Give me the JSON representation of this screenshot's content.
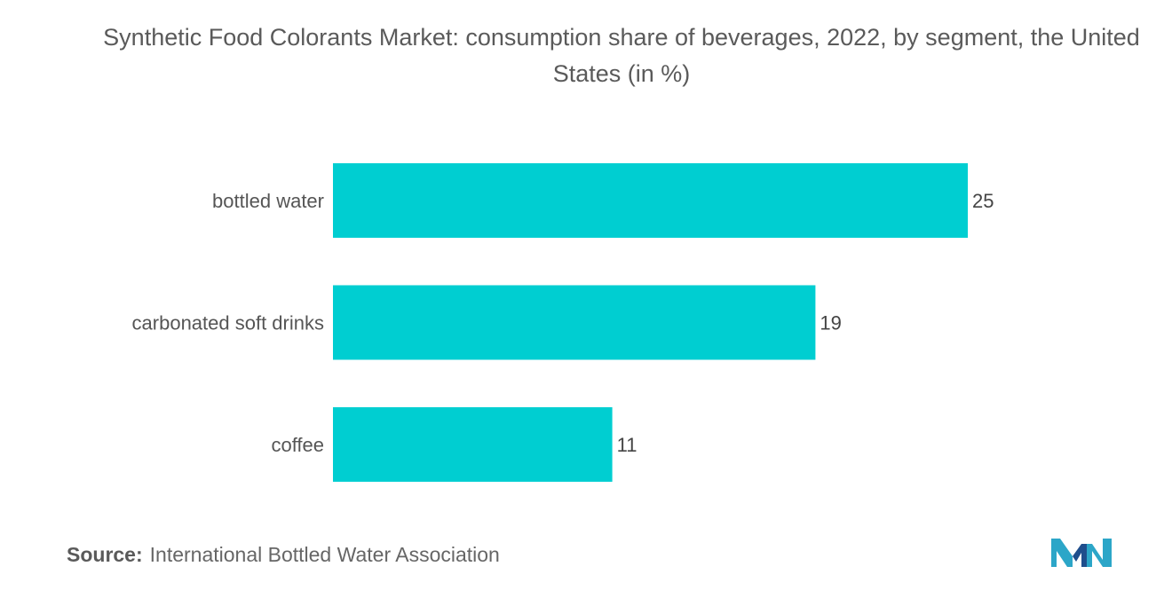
{
  "title": "Synthetic Food Colorants Market: consumption share of beverages, 2022, by segment, the United States (in %)",
  "source": {
    "label": "Source:",
    "text": "International Bottled Water Association"
  },
  "logo": {
    "icon": "mordor-intelligence-logo-icon",
    "colors": [
      "#2ca6c8",
      "#1f4e8c"
    ]
  },
  "chart_data": {
    "type": "bar",
    "orientation": "horizontal",
    "title": "Synthetic Food Colorants Market: consumption share of beverages, 2022, by segment, the United States (in %)",
    "categories": [
      "bottled water",
      "carbonated soft drinks",
      "coffee"
    ],
    "values": [
      25,
      19,
      11
    ],
    "value_labels": [
      "25",
      "19",
      "11"
    ],
    "xlim": [
      0,
      25
    ],
    "grid": false,
    "bar_color": "#00ced1"
  }
}
